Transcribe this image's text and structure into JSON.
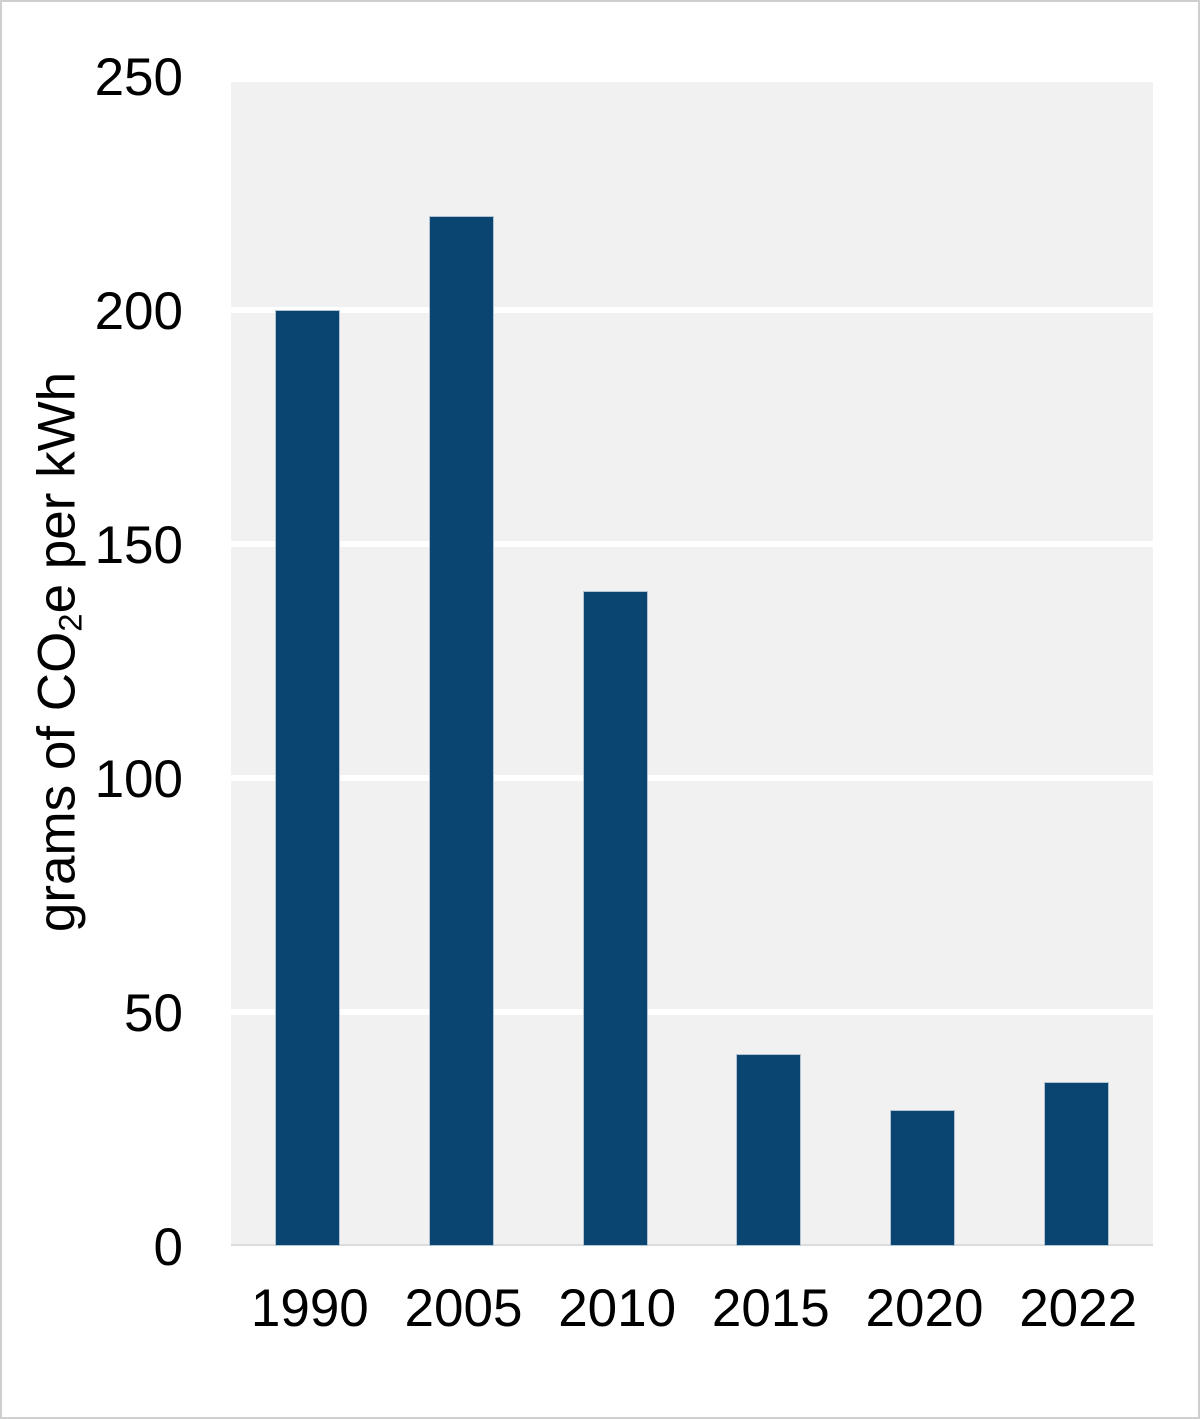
{
  "chart_data": {
    "type": "bar",
    "title": "",
    "categories": [
      "1990",
      "2005",
      "2010",
      "2015",
      "2020",
      "2022"
    ],
    "values": [
      200,
      220,
      140,
      41,
      29,
      35
    ],
    "xlabel": "",
    "ylabel": "grams of CO2e per kWh",
    "ylabel_parts": {
      "pre": "grams of CO",
      "sub": "2",
      "post": "e per kWh"
    },
    "ylim": [
      0,
      250
    ],
    "yticks": [
      0,
      50,
      100,
      150,
      200,
      250
    ],
    "grid": true,
    "legend_position": "none",
    "colors": {
      "bar_fill": "#0a4470",
      "bar_edge": "#b2c3d1",
      "plot_background": "#f1f1f2",
      "gridline": "#ffffff",
      "axis_line": "#dcdcdc",
      "text": "#000000",
      "figure_border": "#cfcfcf",
      "figure_background": "#ffffff"
    }
  }
}
